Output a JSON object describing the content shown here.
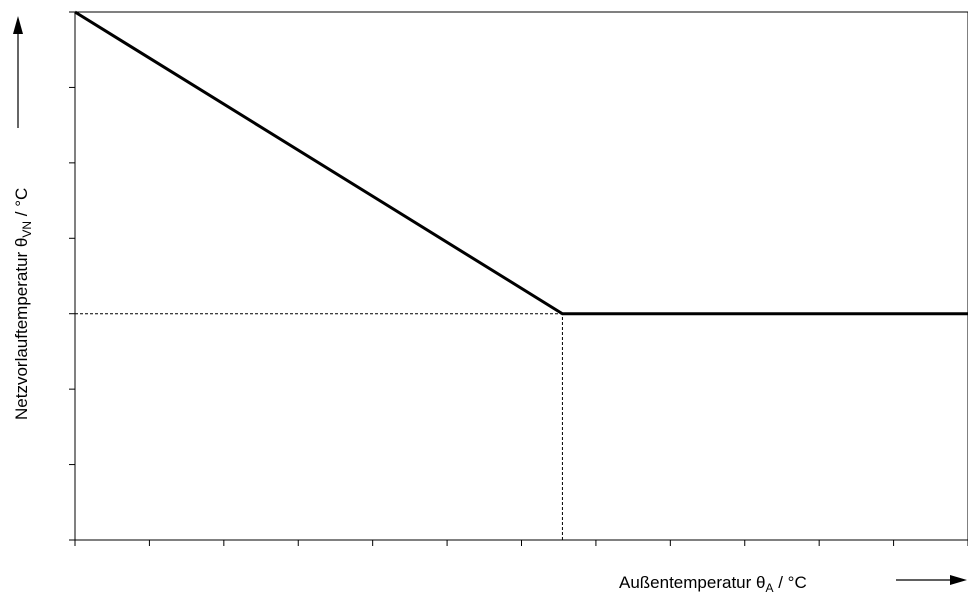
{
  "chart_data": {
    "type": "line",
    "title": "",
    "xlabel": {
      "prefix": "Außentemperatur ",
      "symbol": "θ",
      "subscript": "A",
      "suffix": " / °C"
    },
    "ylabel": {
      "prefix": "Netzvorlauftemperatur ",
      "symbol": "θ",
      "subscript": "VN",
      "suffix": " / °C"
    },
    "xlim": [
      0,
      12
    ],
    "ylim": [
      0,
      7
    ],
    "x_ticks": [
      0,
      1,
      2,
      3,
      4,
      5,
      6,
      7,
      8,
      9,
      10,
      11,
      12
    ],
    "y_ticks": [
      0,
      1,
      2,
      3,
      4,
      5,
      6,
      7
    ],
    "tick_labels_shown": false,
    "grid": false,
    "series": [
      {
        "x": [
          0,
          6.55,
          12
        ],
        "y": [
          7,
          3,
          3
        ],
        "style": "solid"
      }
    ],
    "reference_lines": {
      "horizontal": {
        "y": 3,
        "x_from": 0,
        "x_to": 6.55,
        "style": "dashed"
      },
      "vertical": {
        "x": 6.55,
        "y_from": 0,
        "y_to": 3,
        "style": "dashed"
      }
    },
    "colors": {
      "line": "#000000",
      "axes": "#000000"
    }
  }
}
